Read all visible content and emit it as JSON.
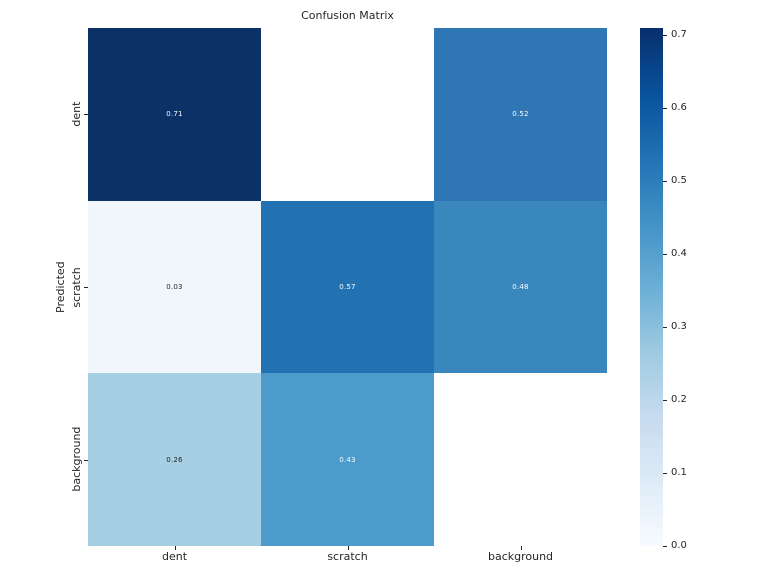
{
  "figure": {
    "title": "Confusion Matrix",
    "ylabel": "Predicted",
    "xlabel": ""
  },
  "chart_data": {
    "type": "heatmap",
    "title": "Confusion Matrix",
    "ylabel": "Predicted",
    "xlabel": "",
    "x_categories": [
      "dent",
      "scratch",
      "background"
    ],
    "y_categories": [
      "dent",
      "scratch",
      "background"
    ],
    "values": [
      [
        0.71,
        null,
        0.52
      ],
      [
        0.03,
        0.57,
        0.48
      ],
      [
        0.26,
        0.43,
        null
      ]
    ],
    "cell_labels": [
      [
        "0.71",
        "",
        "0.52"
      ],
      [
        "0.03",
        "0.57",
        "0.48"
      ],
      [
        "0.26",
        "0.43",
        ""
      ]
    ],
    "cell_colors": [
      [
        "#0b3166",
        "#ffffff",
        "#2e77b4"
      ],
      [
        "#f0f6fc",
        "#2272b1",
        "#3a87be"
      ],
      [
        "#a7cfe4",
        "#4c9bca",
        "#ffffff"
      ]
    ],
    "annotation_text_colors": {
      "light_cells": "#262626",
      "dark_cells": "#ffffff"
    },
    "colormap": "Blues",
    "vmin": 0.0,
    "vmax": 0.71,
    "grid": false,
    "legend_position": "right-colorbar",
    "colorbar_ticks": [
      0.7,
      0.6,
      0.5,
      0.4,
      0.3,
      0.2,
      0.1,
      0.0
    ],
    "colorbar_gradient_top_to_bottom": [
      "#08306b",
      "#08519c",
      "#2171b5",
      "#4292c6",
      "#6baed6",
      "#9ecae1",
      "#c6dbef",
      "#deebf7",
      "#f7fbff"
    ]
  }
}
